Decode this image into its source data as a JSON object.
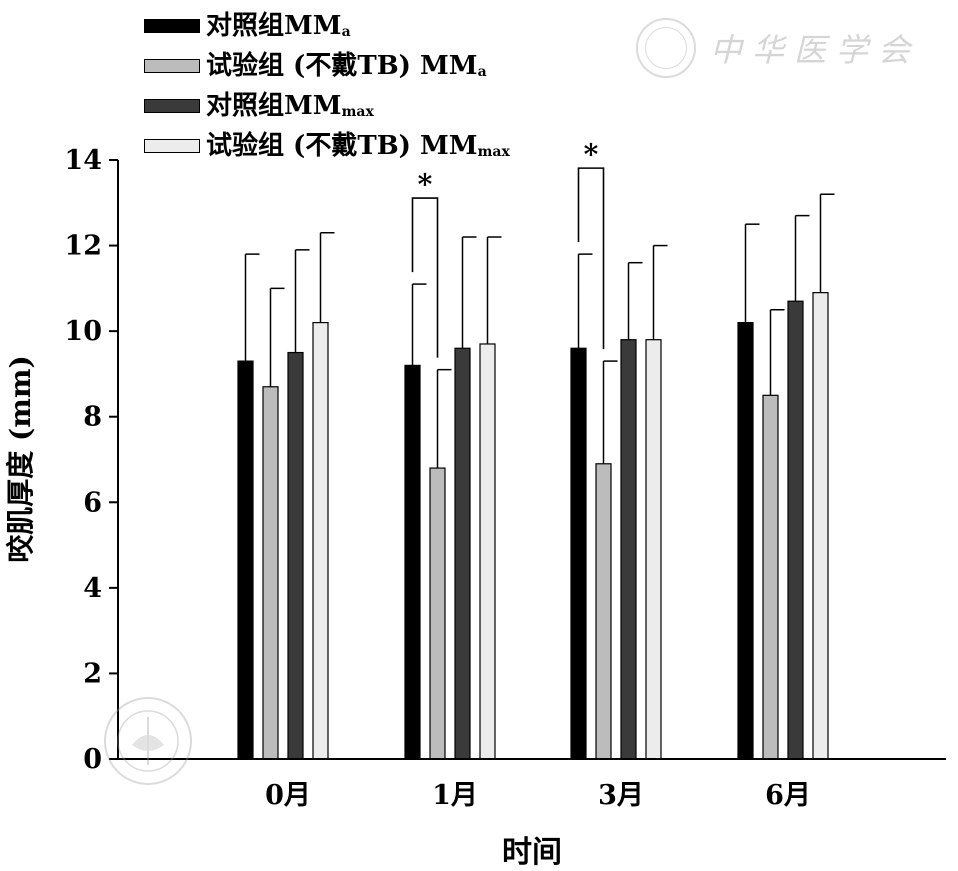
{
  "chart_data": {
    "type": "bar",
    "xlabel": "时间",
    "ylabel": "咬肌厚度 (mm)",
    "ylim": [
      0,
      14
    ],
    "yticks": [
      "0",
      "2",
      "4",
      "6",
      "8",
      "10",
      "12",
      "14"
    ],
    "categories": [
      "0月",
      "1月",
      "3月",
      "6月"
    ],
    "legend_position": "top-left",
    "grid": false,
    "series": [
      {
        "name": "对照组MM",
        "name_sub": "a",
        "color": "#000000",
        "values": [
          9.3,
          9.2,
          9.6,
          10.2
        ],
        "errors": [
          2.5,
          1.9,
          2.2,
          2.3
        ]
      },
      {
        "name": "试验组 (不戴TB) MM",
        "name_sub": "a",
        "color": "#bcbcbc",
        "values": [
          8.7,
          6.8,
          6.9,
          8.5
        ],
        "errors": [
          2.3,
          2.3,
          2.4,
          2.0
        ]
      },
      {
        "name": "对照组MM",
        "name_sub": "max",
        "color": "#3a3a3a",
        "values": [
          9.5,
          9.6,
          9.8,
          10.7
        ],
        "errors": [
          2.4,
          2.6,
          1.8,
          2.0
        ]
      },
      {
        "name": "试验组 (不戴TB) MM",
        "name_sub": "max",
        "color": "#ececec",
        "values": [
          10.2,
          9.7,
          9.8,
          10.9
        ],
        "errors": [
          2.1,
          2.5,
          2.2,
          2.3
        ]
      }
    ],
    "significance": [
      {
        "category": "1月",
        "series_a": 0,
        "series_b": 1,
        "label": "*"
      },
      {
        "category": "3月",
        "series_a": 0,
        "series_b": 1,
        "label": "*"
      }
    ]
  },
  "watermark": {
    "text": "中华医学会",
    "icon": "society-seal-icon"
  }
}
